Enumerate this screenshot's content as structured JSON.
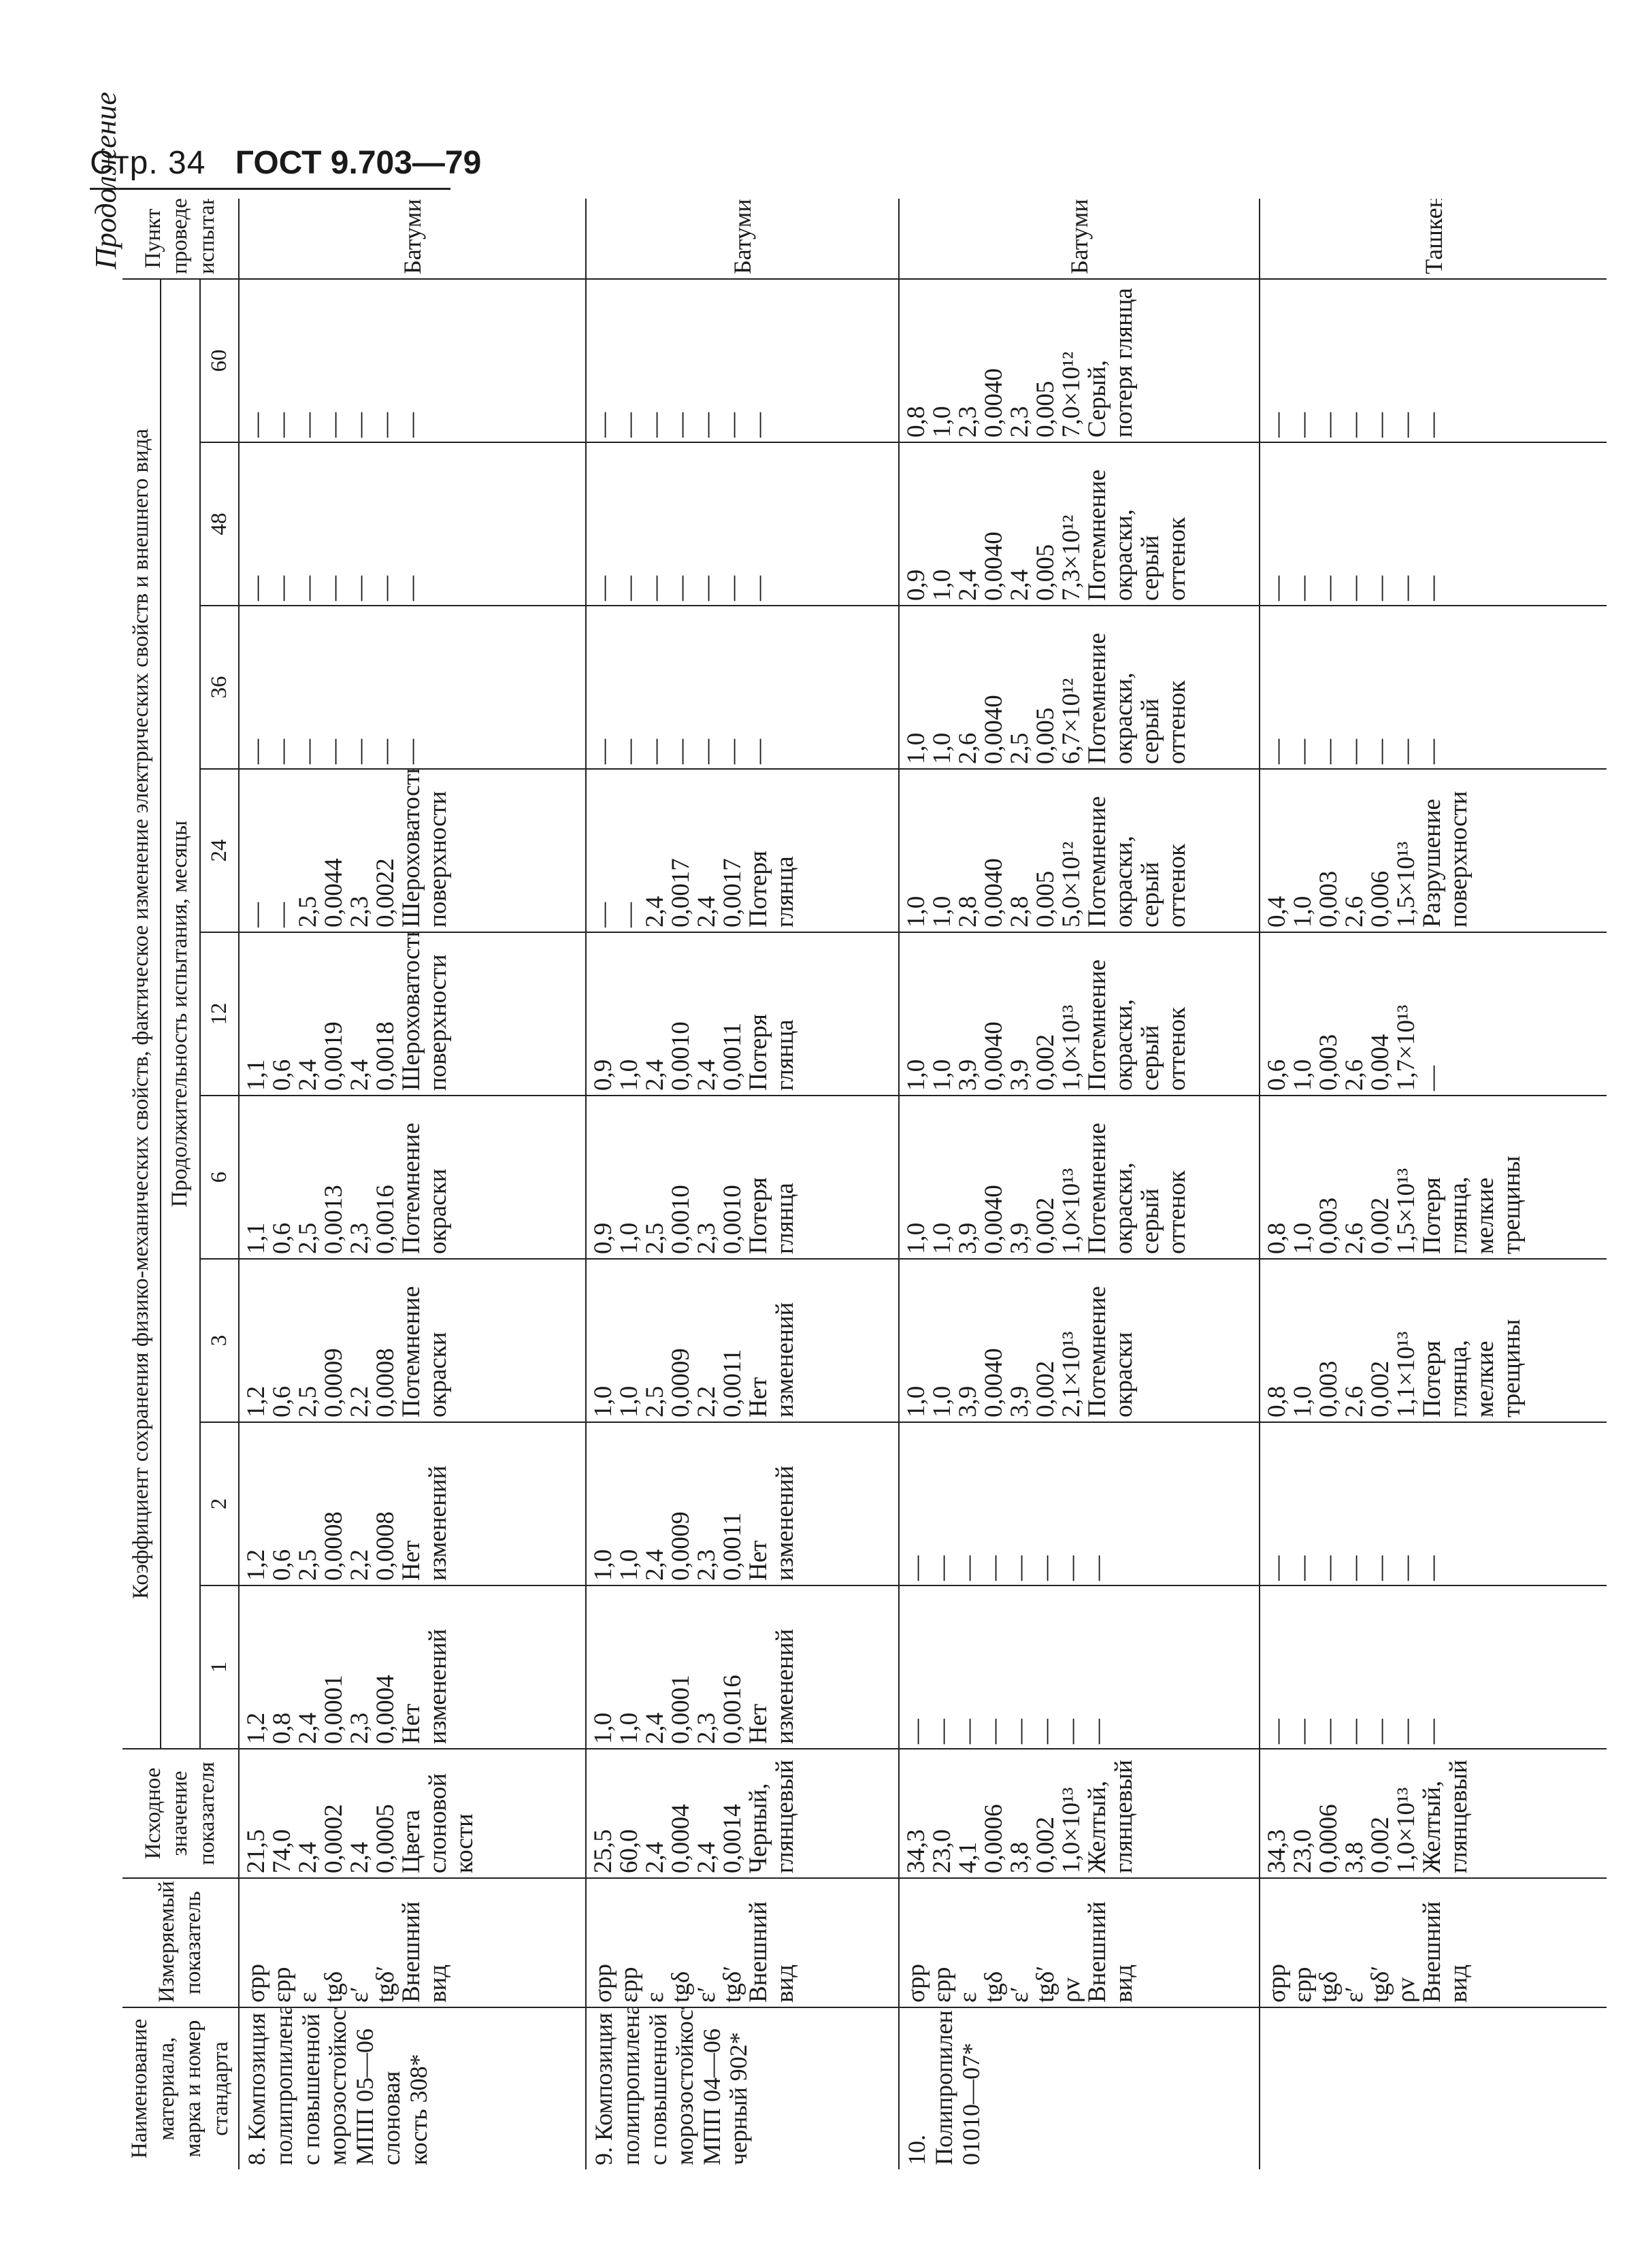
{
  "header": {
    "page_label": "Стр. 34",
    "gost": "ГОСТ 9.703—79"
  },
  "continuation": "Продолжение",
  "table": {
    "col_name": "Наименование материала, марка и номер стандарта",
    "col_indicator": "Измеряемый показатель",
    "col_initial": "Исходное значение показателя",
    "col_group": "Коэффициент сохранения физико-механических свойств, фактическое изменение электрических свойств и внешнего вида",
    "col_duration": "Продолжительность испытания, месяцы",
    "months": [
      "1",
      "2",
      "3",
      "6",
      "12",
      "24",
      "36",
      "48",
      "60"
    ],
    "col_place": "Пункт проведения испытаний",
    "rows": [
      {
        "name": "8. Композиция полипропилена с повышенной морозостойкостью МПП 05—06 слоновая кость 308*",
        "indicators": [
          "σрр",
          "εрр",
          "ε",
          "tgδ",
          "ε′",
          "tgδ′",
          "Внешний вид"
        ],
        "initial": [
          "21,5",
          "74,0",
          "2,4",
          "0,0002",
          "2,4",
          "0,0005",
          "Цвета слоновой кости"
        ],
        "m1": [
          "1,2",
          "0,8",
          "2,4",
          "0,0001",
          "2,3",
          "0,0004",
          "Нет изменений"
        ],
        "m2": [
          "1,2",
          "0,6",
          "2,5",
          "0,0008",
          "2,2",
          "0,0008",
          "Нет изменений"
        ],
        "m3": [
          "1,2",
          "0,6",
          "2,5",
          "0,0009",
          "2,2",
          "0,0008",
          "Потемнение окраски"
        ],
        "m6": [
          "1,1",
          "0,6",
          "2,5",
          "0,0013",
          "2,3",
          "0,0016",
          "Потемнение окраски"
        ],
        "m12": [
          "1,1",
          "0,6",
          "2,4",
          "0,0019",
          "2,4",
          "0,0018",
          "Шероховатость поверхности"
        ],
        "m24": [
          "—",
          "—",
          "2,5",
          "0,0044",
          "2,3",
          "0,0022",
          "Шероховатость поверхности"
        ],
        "m36": [
          "—",
          "—",
          "—",
          "—",
          "—",
          "—",
          "—"
        ],
        "m48": [
          "—",
          "—",
          "—",
          "—",
          "—",
          "—",
          "—"
        ],
        "m60": [
          "—",
          "—",
          "—",
          "—",
          "—",
          "—",
          "—"
        ],
        "place": "Батуми"
      },
      {
        "name": "9. Композиция полипропилена с повышенной морозостойкостью МПП 04—06 черный 902*",
        "indicators": [
          "σрр",
          "εрр",
          "ε",
          "tgδ",
          "ε′",
          "tgδ′",
          "Внешний вид"
        ],
        "initial": [
          "25,5",
          "60,0",
          "2,4",
          "0,0004",
          "2,4",
          "0,0014",
          "Черный, глянцевый"
        ],
        "m1": [
          "1,0",
          "1,0",
          "2,4",
          "0,0001",
          "2,3",
          "0,0016",
          "Нет изменений"
        ],
        "m2": [
          "1,0",
          "1,0",
          "2,4",
          "0,0009",
          "2,3",
          "0,0011",
          "Нет изменений"
        ],
        "m3": [
          "1,0",
          "1,0",
          "2,5",
          "0,0009",
          "2,2",
          "0,0011",
          "Нет изменений"
        ],
        "m6": [
          "0,9",
          "1,0",
          "2,5",
          "0,0010",
          "2,3",
          "0,0010",
          "Потеря глянца"
        ],
        "m12": [
          "0,9",
          "1,0",
          "2,4",
          "0,0010",
          "2,4",
          "0,0011",
          "Потеря глянца"
        ],
        "m24": [
          "—",
          "—",
          "2,4",
          "0,0017",
          "2,4",
          "0,0017",
          "Потеря глянца"
        ],
        "m36": [
          "—",
          "—",
          "—",
          "—",
          "—",
          "—",
          "—"
        ],
        "m48": [
          "—",
          "—",
          "—",
          "—",
          "—",
          "—",
          "—"
        ],
        "m60": [
          "—",
          "—",
          "—",
          "—",
          "—",
          "—",
          "—"
        ],
        "place": "Батуми"
      },
      {
        "name": "10. Полипропилен 01010—07*",
        "indicators": [
          "σрр",
          "εрр",
          "ε",
          "tgδ",
          "ε′",
          "tgδ′",
          "ρv",
          "Внешний вид"
        ],
        "initial": [
          "34,3",
          "23,0",
          "4,1",
          "0,0006",
          "3,8",
          "0,002",
          "1,0×10¹³",
          "Желтый, глянцевый"
        ],
        "m1": [
          "—",
          "—",
          "—",
          "—",
          "—",
          "—",
          "—",
          "—"
        ],
        "m2": [
          "—",
          "—",
          "—",
          "—",
          "—",
          "—",
          "—",
          "—"
        ],
        "m3": [
          "1,0",
          "1,0",
          "3,9",
          "0,0040",
          "3,9",
          "0,002",
          "2,1×10¹³",
          "Потемнение окраски"
        ],
        "m6": [
          "1,0",
          "1,0",
          "3,9",
          "0,0040",
          "3,9",
          "0,002",
          "1,0×10¹³",
          "Потемнение окраски, серый оттенок"
        ],
        "m12": [
          "1,0",
          "1,0",
          "3,9",
          "0,0040",
          "3,9",
          "0,002",
          "1,0×10¹³",
          "Потемнение окраски, серый оттенок"
        ],
        "m24": [
          "1,0",
          "1,0",
          "2,8",
          "0,0040",
          "2,8",
          "0,005",
          "5,0×10¹²",
          "Потемнение окраски, серый оттенок"
        ],
        "m36": [
          "1,0",
          "1,0",
          "2,6",
          "0,0040",
          "2,5",
          "0,005",
          "6,7×10¹²",
          "Потемнение окраски, серый оттенок"
        ],
        "m48": [
          "0,9",
          "1,0",
          "2,4",
          "0,0040",
          "2,4",
          "0,005",
          "7,3×10¹²",
          "Потемнение окраски, серый оттенок"
        ],
        "m60": [
          "0,8",
          "1,0",
          "2,3",
          "0,0040",
          "2,3",
          "0,005",
          "7,0×10¹²",
          "Серый, потеря глянца"
        ],
        "place": "Батуми"
      },
      {
        "name": "",
        "indicators": [
          "σрр",
          "εрр",
          "tgδ",
          "ε′",
          "tgδ′",
          "ρv",
          "Внешний вид"
        ],
        "initial": [
          "34,3",
          "23,0",
          "0,0006",
          "3,8",
          "0,002",
          "1,0×10¹³",
          "Желтый, глянцевый"
        ],
        "m1": [
          "—",
          "—",
          "—",
          "—",
          "—",
          "—",
          "—"
        ],
        "m2": [
          "—",
          "—",
          "—",
          "—",
          "—",
          "—",
          "—"
        ],
        "m3": [
          "0,8",
          "1,0",
          "0,003",
          "2,6",
          "0,002",
          "1,1×10¹³",
          "Потеря глянца, мелкие трещины"
        ],
        "m6": [
          "0,8",
          "1,0",
          "0,003",
          "2,6",
          "0,002",
          "1,5×10¹³",
          "Потеря глянца, мелкие трещины"
        ],
        "m12": [
          "0,6",
          "1,0",
          "0,003",
          "2,6",
          "0,004",
          "1,7×10¹³",
          "—"
        ],
        "m24": [
          "0,4",
          "1,0",
          "0,003",
          "2,6",
          "0,006",
          "1,5×10¹³",
          "Разрушение поверхности"
        ],
        "m36": [
          "—",
          "—",
          "—",
          "—",
          "—",
          "—",
          "—"
        ],
        "m48": [
          "—",
          "—",
          "—",
          "—",
          "—",
          "—",
          "—"
        ],
        "m60": [
          "—",
          "—",
          "—",
          "—",
          "—",
          "—",
          "—"
        ],
        "place": "Ташкент"
      }
    ]
  }
}
